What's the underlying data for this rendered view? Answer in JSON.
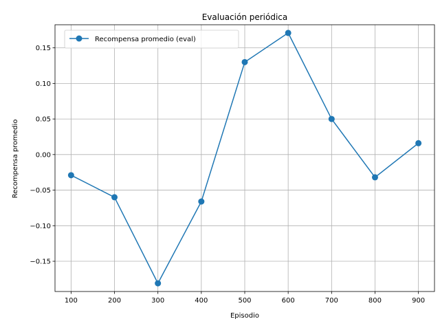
{
  "chart_data": {
    "type": "line",
    "title": "Evaluación periódica",
    "xlabel": "Episodio",
    "ylabel": "Recompensa promedio",
    "x": [
      100,
      200,
      300,
      400,
      500,
      600,
      700,
      800,
      900
    ],
    "xticks": [
      "100",
      "200",
      "300",
      "400",
      "500",
      "600",
      "700",
      "800",
      "900"
    ],
    "yticks": [
      -0.15,
      -0.1,
      -0.05,
      0.0,
      0.05,
      0.1,
      0.15
    ],
    "ytick_labels": [
      "−0.15",
      "−0.10",
      "−0.05",
      "0.00",
      "0.05",
      "0.10",
      "0.15"
    ],
    "xlim": [
      63,
      937
    ],
    "ylim": [
      -0.1925,
      0.1825
    ],
    "grid": true,
    "legend_position": "upper-left",
    "series": [
      {
        "name": "Recompensa promedio (eval)",
        "color": "#1f77b4",
        "marker": "circle",
        "values": [
          -0.029,
          -0.06,
          -0.181,
          -0.066,
          0.13,
          0.171,
          0.05,
          -0.032,
          0.016
        ]
      }
    ]
  }
}
